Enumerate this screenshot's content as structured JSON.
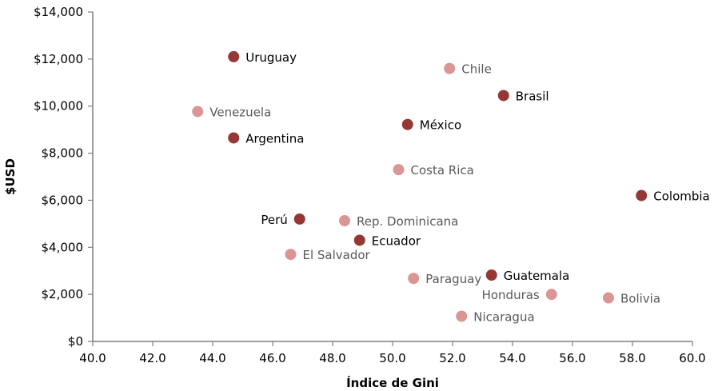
{
  "chart_data": {
    "type": "scatter",
    "xlabel": "Índice de Gini",
    "ylabel": "$USD",
    "xlim": [
      40.0,
      60.0
    ],
    "ylim": [
      0,
      14000
    ],
    "x_ticks": [
      40.0,
      42.0,
      44.0,
      46.0,
      48.0,
      50.0,
      52.0,
      54.0,
      56.0,
      58.0,
      60.0
    ],
    "x_tick_labels": [
      "40.0",
      "42.0",
      "44.0",
      "46.0",
      "48.0",
      "50.0",
      "52.0",
      "54.0",
      "56.0",
      "58.0",
      "60.0"
    ],
    "y_ticks": [
      0,
      2000,
      4000,
      6000,
      8000,
      10000,
      12000,
      14000
    ],
    "y_tick_labels": [
      "$0",
      "$2,000",
      "$4,000",
      "$6,000",
      "$8,000",
      "$10,000",
      "$12,000",
      "$14,000"
    ],
    "grid": false,
    "colors": {
      "dark": "#953735",
      "light": "#d99694",
      "dark_label": "#000000",
      "light_label": "#595959"
    },
    "points": [
      {
        "label": "Uruguay",
        "x": 44.7,
        "y": 12100,
        "group": "dark",
        "label_side": "right"
      },
      {
        "label": "Chile",
        "x": 51.9,
        "y": 11600,
        "group": "light",
        "label_side": "right"
      },
      {
        "label": "Brasil",
        "x": 53.7,
        "y": 10450,
        "group": "dark",
        "label_side": "right"
      },
      {
        "label": "Venezuela",
        "x": 43.5,
        "y": 9770,
        "group": "light",
        "label_side": "right"
      },
      {
        "label": "México",
        "x": 50.5,
        "y": 9220,
        "group": "dark",
        "label_side": "right"
      },
      {
        "label": "Argentina",
        "x": 44.7,
        "y": 8650,
        "group": "dark",
        "label_side": "right"
      },
      {
        "label": "Costa Rica",
        "x": 50.2,
        "y": 7300,
        "group": "light",
        "label_side": "right"
      },
      {
        "label": "Colombia",
        "x": 58.3,
        "y": 6200,
        "group": "dark",
        "label_side": "right"
      },
      {
        "label": "Perú",
        "x": 46.9,
        "y": 5200,
        "group": "dark",
        "label_side": "left"
      },
      {
        "label": "Rep. Dominicana",
        "x": 48.4,
        "y": 5130,
        "group": "light",
        "label_side": "right"
      },
      {
        "label": "Ecuador",
        "x": 48.9,
        "y": 4300,
        "group": "dark",
        "label_side": "right"
      },
      {
        "label": "El Salvador",
        "x": 46.6,
        "y": 3700,
        "group": "light",
        "label_side": "right"
      },
      {
        "label": "Paraguay",
        "x": 50.7,
        "y": 2680,
        "group": "light",
        "label_side": "right"
      },
      {
        "label": "Guatemala",
        "x": 53.3,
        "y": 2820,
        "group": "dark",
        "label_side": "right"
      },
      {
        "label": "Honduras",
        "x": 55.3,
        "y": 2000,
        "group": "light",
        "label_side": "left"
      },
      {
        "label": "Bolivia",
        "x": 57.2,
        "y": 1850,
        "group": "light",
        "label_side": "right"
      },
      {
        "label": "Nicaragua",
        "x": 52.3,
        "y": 1070,
        "group": "light",
        "label_side": "right"
      }
    ]
  }
}
